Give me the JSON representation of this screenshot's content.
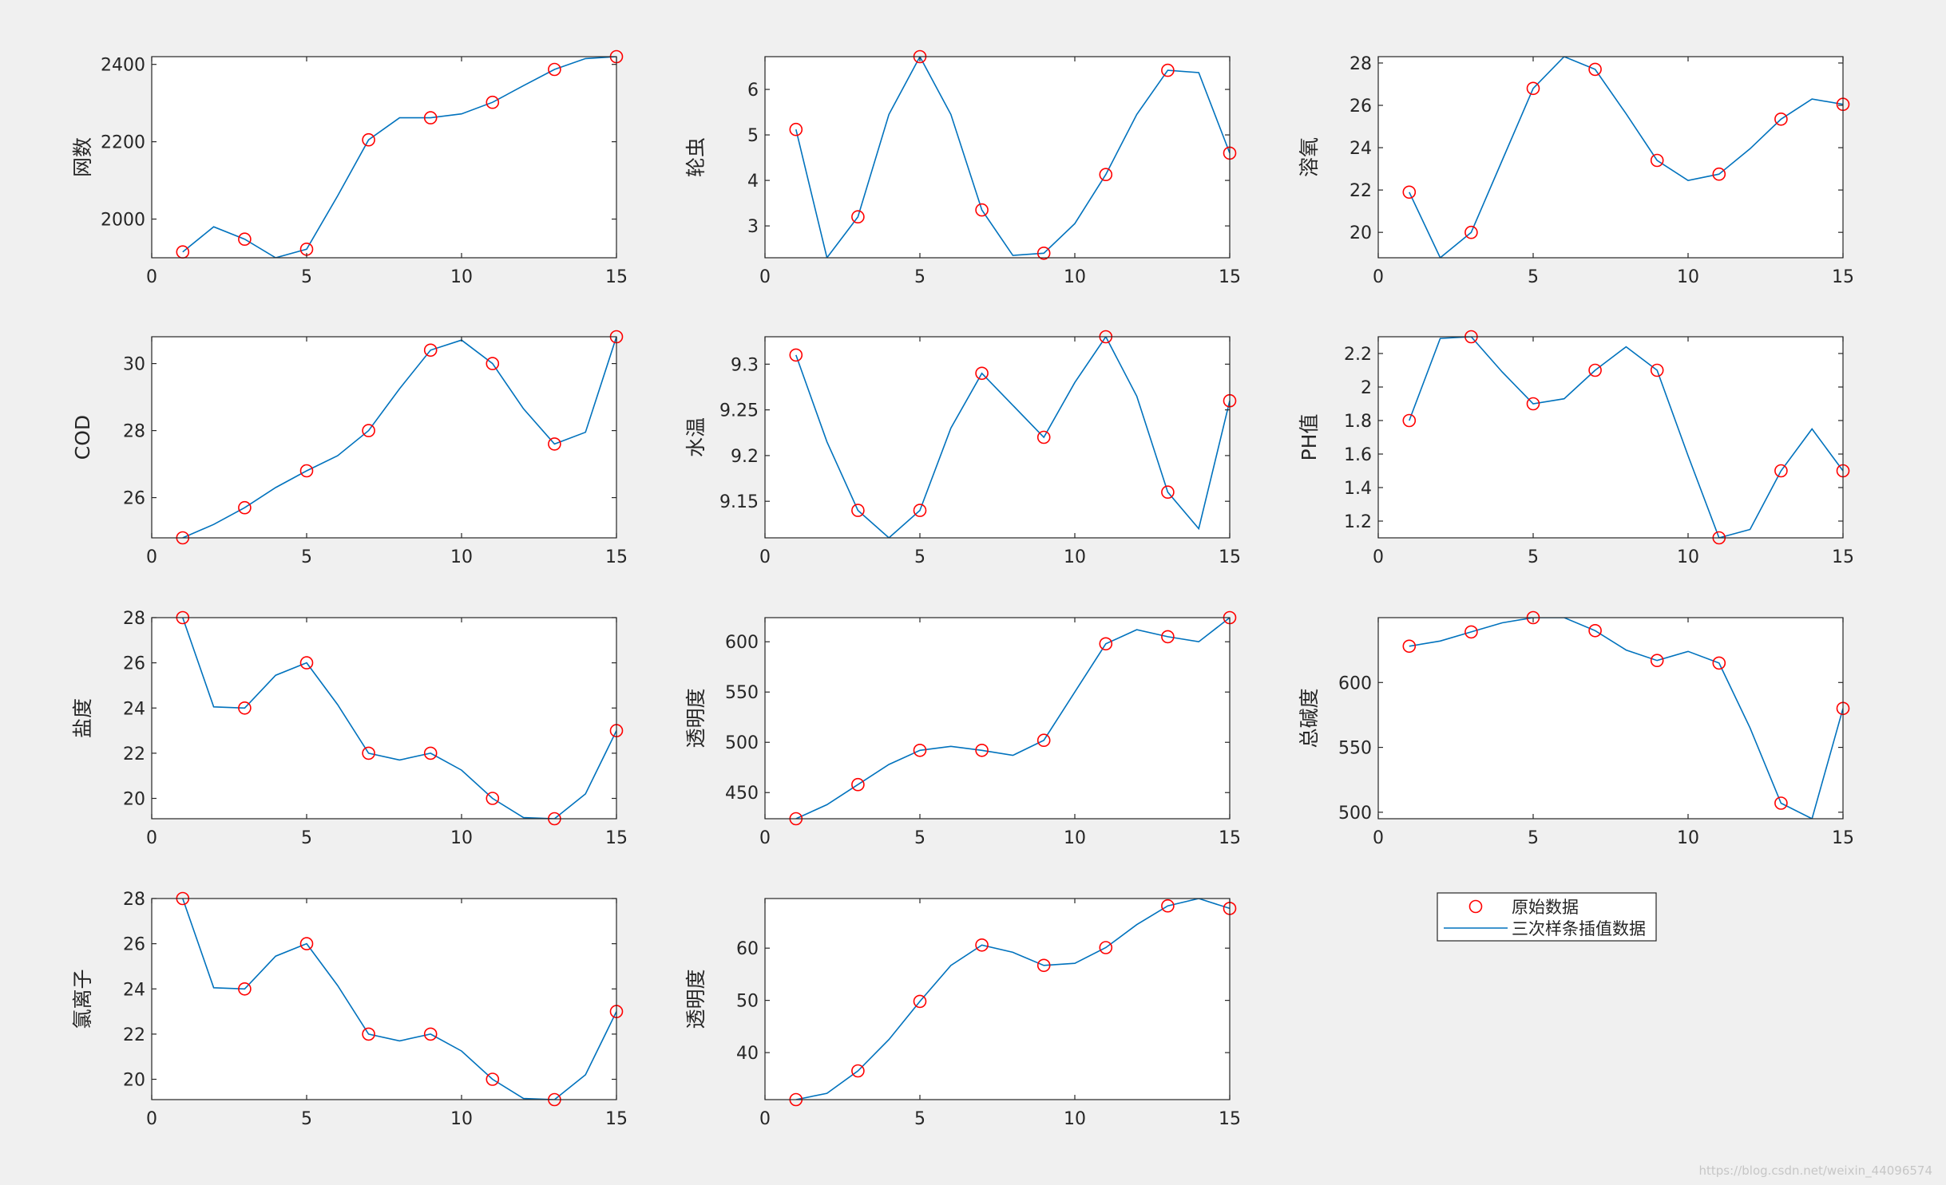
{
  "colors": {
    "background": "#f0f0f0",
    "axes_bg": "#ffffff",
    "axis_line": "#262626",
    "raw_marker": "#ff0000",
    "spline_line": "#0072bd"
  },
  "legend": {
    "entries": [
      {
        "label": "原始数据",
        "style": "marker-circle",
        "color": "#ff0000"
      },
      {
        "label": "三次样条插值数据",
        "style": "line",
        "color": "#0072bd"
      }
    ]
  },
  "watermark": "https://blog.csdn.net/weixin_44096574",
  "chart_data": [
    {
      "type": "line",
      "ylabel": "网数",
      "xlim": [
        0,
        15
      ],
      "ylim": [
        1900,
        2420
      ],
      "xticks": [
        0,
        5,
        10,
        15
      ],
      "yticks": [
        2000,
        2200,
        2400
      ],
      "series": [
        {
          "name": "原始数据",
          "style": "marker",
          "x": [
            1,
            3,
            5,
            7,
            9,
            11,
            13,
            15
          ],
          "y": [
            1915,
            1948,
            1922,
            2205,
            2262,
            2302,
            2387,
            2420
          ]
        },
        {
          "name": "三次样条插值数据",
          "style": "line",
          "x": [
            1,
            2,
            3,
            4,
            5,
            6,
            7,
            8,
            9,
            10,
            11,
            12,
            13,
            14,
            15
          ],
          "y": [
            1915,
            1980,
            1948,
            1900,
            1922,
            2060,
            2205,
            2262,
            2262,
            2272,
            2302,
            2345,
            2387,
            2415,
            2420
          ]
        }
      ]
    },
    {
      "type": "line",
      "ylabel": "轮虫",
      "xlim": [
        0,
        15
      ],
      "ylim": [
        2.3,
        6.72
      ],
      "xticks": [
        0,
        5,
        10,
        15
      ],
      "yticks": [
        3,
        4,
        5,
        6
      ],
      "series": [
        {
          "name": "原始数据",
          "style": "marker",
          "x": [
            1,
            3,
            5,
            7,
            9,
            11,
            13,
            15
          ],
          "y": [
            5.12,
            3.2,
            6.72,
            3.35,
            2.4,
            4.13,
            6.42,
            4.6
          ]
        },
        {
          "name": "三次样条插值数据",
          "style": "line",
          "x": [
            1,
            2,
            3,
            4,
            5,
            6,
            7,
            8,
            9,
            10,
            11,
            12,
            13,
            14,
            15
          ],
          "y": [
            5.12,
            2.3,
            3.2,
            5.45,
            6.72,
            5.45,
            3.35,
            2.35,
            2.4,
            3.05,
            4.13,
            5.45,
            6.42,
            6.37,
            4.6
          ]
        }
      ]
    },
    {
      "type": "line",
      "ylabel": "溶氧",
      "xlim": [
        0,
        15
      ],
      "ylim": [
        18.8,
        28.3
      ],
      "xticks": [
        0,
        5,
        10,
        15
      ],
      "yticks": [
        20,
        22,
        24,
        26,
        28
      ],
      "series": [
        {
          "name": "原始数据",
          "style": "marker",
          "x": [
            1,
            3,
            5,
            7,
            9,
            11,
            13,
            15
          ],
          "y": [
            21.9,
            20.0,
            26.8,
            27.7,
            23.4,
            22.75,
            25.35,
            26.05
          ]
        },
        {
          "name": "三次样条插值数据",
          "style": "line",
          "x": [
            1,
            2,
            3,
            4,
            5,
            6,
            7,
            8,
            9,
            10,
            11,
            12,
            13,
            14,
            15
          ],
          "y": [
            21.9,
            18.8,
            20.0,
            23.4,
            26.8,
            28.3,
            27.7,
            25.6,
            23.4,
            22.45,
            22.75,
            23.95,
            25.35,
            26.3,
            26.05
          ]
        }
      ]
    },
    {
      "type": "line",
      "ylabel": "COD",
      "xlim": [
        0,
        15
      ],
      "ylim": [
        24.8,
        30.8
      ],
      "xticks": [
        0,
        5,
        10,
        15
      ],
      "yticks": [
        26,
        28,
        30
      ],
      "series": [
        {
          "name": "原始数据",
          "style": "marker",
          "x": [
            1,
            3,
            5,
            7,
            9,
            11,
            13,
            15
          ],
          "y": [
            24.8,
            25.7,
            26.8,
            28.0,
            30.4,
            30.0,
            27.6,
            30.8
          ]
        },
        {
          "name": "三次样条插值数据",
          "style": "line",
          "x": [
            1,
            2,
            3,
            4,
            5,
            6,
            7,
            8,
            9,
            10,
            11,
            12,
            13,
            14,
            15
          ],
          "y": [
            24.8,
            25.2,
            25.7,
            26.3,
            26.8,
            27.25,
            28.0,
            29.25,
            30.4,
            30.7,
            30.0,
            28.65,
            27.6,
            27.95,
            30.8
          ]
        }
      ]
    },
    {
      "type": "line",
      "ylabel": "水温",
      "xlim": [
        0,
        15
      ],
      "ylim": [
        9.11,
        9.33
      ],
      "xticks": [
        0,
        5,
        10,
        15
      ],
      "yticks": [
        9.15,
        9.2,
        9.25,
        9.3
      ],
      "ytick_labels": [
        "9.15",
        "9.2",
        "9.25",
        "9.3"
      ],
      "series": [
        {
          "name": "原始数据",
          "style": "marker",
          "x": [
            1,
            3,
            5,
            7,
            9,
            11,
            13,
            15
          ],
          "y": [
            9.31,
            9.14,
            9.14,
            9.29,
            9.22,
            9.33,
            9.16,
            9.26
          ]
        },
        {
          "name": "三次样条插值数据",
          "style": "line",
          "x": [
            1,
            2,
            3,
            4,
            5,
            6,
            7,
            8,
            9,
            10,
            11,
            12,
            13,
            14,
            15
          ],
          "y": [
            9.31,
            9.215,
            9.14,
            9.11,
            9.14,
            9.23,
            9.29,
            9.255,
            9.22,
            9.28,
            9.33,
            9.265,
            9.16,
            9.12,
            9.26
          ]
        }
      ]
    },
    {
      "type": "line",
      "ylabel": "PH值",
      "xlim": [
        0,
        15
      ],
      "ylim": [
        1.1,
        2.3
      ],
      "xticks": [
        0,
        5,
        10,
        15
      ],
      "yticks": [
        1.2,
        1.4,
        1.6,
        1.8,
        2,
        2.2
      ],
      "ytick_labels": [
        "1.2",
        "1.4",
        "1.6",
        "1.8",
        "2",
        "2.2"
      ],
      "series": [
        {
          "name": "原始数据",
          "style": "marker",
          "x": [
            1,
            3,
            5,
            7,
            9,
            11,
            13,
            15
          ],
          "y": [
            1.8,
            2.3,
            1.9,
            2.1,
            2.1,
            1.1,
            1.5,
            1.5
          ]
        },
        {
          "name": "三次样条插值数据",
          "style": "line",
          "x": [
            1,
            2,
            3,
            4,
            5,
            6,
            7,
            8,
            9,
            10,
            11,
            12,
            13,
            14,
            15
          ],
          "y": [
            1.8,
            2.29,
            2.3,
            2.09,
            1.9,
            1.93,
            2.1,
            2.24,
            2.1,
            1.59,
            1.1,
            1.15,
            1.5,
            1.75,
            1.5
          ]
        }
      ]
    },
    {
      "type": "line",
      "ylabel": "盐度",
      "xlim": [
        0,
        15
      ],
      "ylim": [
        19.1,
        28.0
      ],
      "xticks": [
        0,
        5,
        10,
        15
      ],
      "yticks": [
        20,
        22,
        24,
        26,
        28
      ],
      "series": [
        {
          "name": "原始数据",
          "style": "marker",
          "x": [
            1,
            3,
            5,
            7,
            9,
            11,
            13,
            15
          ],
          "y": [
            28.0,
            24.0,
            26.0,
            22.0,
            22.0,
            20.0,
            19.1,
            23.0
          ]
        },
        {
          "name": "三次样条插值数据",
          "style": "line",
          "x": [
            1,
            2,
            3,
            4,
            5,
            6,
            7,
            8,
            9,
            10,
            11,
            12,
            13,
            14,
            15
          ],
          "y": [
            28.0,
            24.05,
            24.0,
            25.45,
            26.0,
            24.15,
            22.0,
            21.7,
            22.0,
            21.25,
            20.0,
            19.15,
            19.1,
            20.2,
            23.0
          ]
        }
      ]
    },
    {
      "type": "line",
      "ylabel": "透明度",
      "xlim": [
        0,
        15
      ],
      "ylim": [
        424,
        624
      ],
      "xticks": [
        0,
        5,
        10,
        15
      ],
      "yticks": [
        450,
        500,
        550,
        600
      ],
      "series": [
        {
          "name": "原始数据",
          "style": "marker",
          "x": [
            1,
            3,
            5,
            7,
            9,
            11,
            13,
            15
          ],
          "y": [
            424,
            458,
            492,
            492,
            502,
            598,
            605,
            624
          ]
        },
        {
          "name": "三次样条插值数据",
          "style": "line",
          "x": [
            1,
            2,
            3,
            4,
            5,
            6,
            7,
            8,
            9,
            10,
            11,
            12,
            13,
            14,
            15
          ],
          "y": [
            424,
            438,
            458,
            478,
            492,
            496,
            492,
            487,
            502,
            550,
            598,
            612,
            605,
            600,
            624
          ]
        }
      ]
    },
    {
      "type": "line",
      "ylabel": "总碱度",
      "xlim": [
        0,
        15
      ],
      "ylim": [
        495,
        650
      ],
      "xticks": [
        0,
        5,
        10,
        15
      ],
      "yticks": [
        500,
        550,
        600
      ],
      "series": [
        {
          "name": "原始数据",
          "style": "marker",
          "x": [
            1,
            3,
            5,
            7,
            9,
            11,
            13,
            15
          ],
          "y": [
            628,
            639,
            650,
            640,
            617,
            615,
            507,
            580
          ]
        },
        {
          "name": "三次样条插值数据",
          "style": "line",
          "x": [
            1,
            2,
            3,
            4,
            5,
            6,
            7,
            8,
            9,
            10,
            11,
            12,
            13,
            14,
            15
          ],
          "y": [
            628,
            632,
            639,
            646,
            650,
            650,
            640,
            625,
            617,
            624,
            615,
            565,
            507,
            495,
            580
          ]
        }
      ]
    },
    {
      "type": "line",
      "ylabel": "氯离子",
      "xlim": [
        0,
        15
      ],
      "ylim": [
        19.1,
        28.0
      ],
      "xticks": [
        0,
        5,
        10,
        15
      ],
      "yticks": [
        20,
        22,
        24,
        26,
        28
      ],
      "series": [
        {
          "name": "原始数据",
          "style": "marker",
          "x": [
            1,
            3,
            5,
            7,
            9,
            11,
            13,
            15
          ],
          "y": [
            28.0,
            24.0,
            26.0,
            22.0,
            22.0,
            20.0,
            19.1,
            23.0
          ]
        },
        {
          "name": "三次样条插值数据",
          "style": "line",
          "x": [
            1,
            2,
            3,
            4,
            5,
            6,
            7,
            8,
            9,
            10,
            11,
            12,
            13,
            14,
            15
          ],
          "y": [
            28.0,
            24.05,
            24.0,
            25.45,
            26.0,
            24.15,
            22.0,
            21.7,
            22.0,
            21.25,
            20.0,
            19.15,
            19.1,
            20.2,
            23.0
          ]
        }
      ]
    },
    {
      "type": "line",
      "ylabel": "透明度",
      "xlim": [
        0,
        15
      ],
      "ylim": [
        31,
        69.5
      ],
      "xticks": [
        0,
        5,
        10,
        15
      ],
      "yticks": [
        40,
        50,
        60
      ],
      "series": [
        {
          "name": "原始数据",
          "style": "marker",
          "x": [
            1,
            3,
            5,
            7,
            9,
            11,
            13,
            15
          ],
          "y": [
            31,
            36.5,
            49.8,
            60.6,
            56.7,
            60.1,
            68.1,
            67.6
          ]
        },
        {
          "name": "三次样条插值数据",
          "style": "line",
          "x": [
            1,
            2,
            3,
            4,
            5,
            6,
            7,
            8,
            9,
            10,
            11,
            12,
            13,
            14,
            15
          ],
          "y": [
            31,
            32.2,
            36.5,
            42.5,
            49.8,
            56.7,
            60.6,
            59.2,
            56.7,
            57.1,
            60.1,
            64.5,
            68.1,
            69.5,
            67.6
          ]
        }
      ]
    }
  ]
}
